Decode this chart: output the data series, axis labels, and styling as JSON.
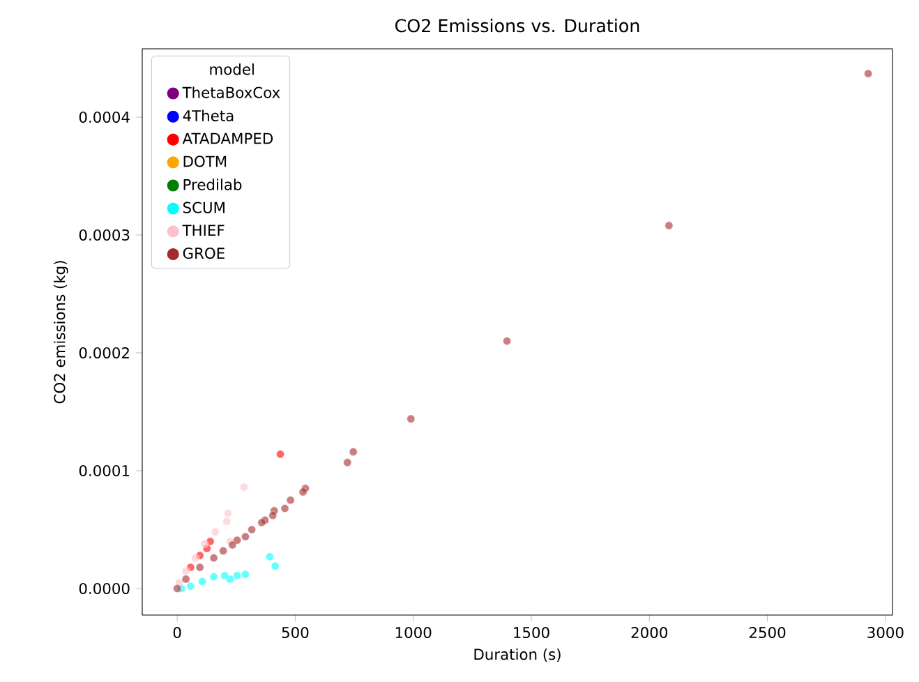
{
  "chart_data": {
    "type": "scatter",
    "title": "CO2 Emissions vs. Duration",
    "xlabel": "Duration (s)",
    "ylabel": "CO2 emissions (kg)",
    "legend_title": "model",
    "legend": "top left",
    "xlim": [
      -148,
      3030
    ],
    "ylim": [
      -2.25e-05,
      0.000458
    ],
    "xticks": [
      0,
      500,
      1000,
      1500,
      2000,
      2500,
      3000
    ],
    "yticks": [
      {
        "value": 0,
        "label": "0.0000"
      },
      {
        "value": 0.0001,
        "label": "0.0001"
      },
      {
        "value": 0.0002,
        "label": "0.0002"
      },
      {
        "value": 0.0003,
        "label": "0.0003"
      },
      {
        "value": 0.0004,
        "label": "0.0004"
      }
    ],
    "series": [
      {
        "name": "ThetaBoxCox",
        "color": "#800080"
      },
      {
        "name": "4Theta",
        "color": "#0000ff"
      },
      {
        "name": "ATADAMPED",
        "color": "#ff0000",
        "x": [
          437,
          140,
          126,
          96,
          57
        ],
        "values": [
          0.000114,
          4e-05,
          3.4e-05,
          2.8e-05,
          1.8e-05
        ]
      },
      {
        "name": "DOTM",
        "color": "#ffa500"
      },
      {
        "name": "Predilab",
        "color": "#008000"
      },
      {
        "name": "SCUM",
        "color": "#00ffff",
        "x": [
          392,
          415,
          289,
          254,
          224,
          201,
          155,
          106,
          57,
          18
        ],
        "values": [
          2.7e-05,
          1.9e-05,
          1.2e-05,
          1.1e-05,
          8e-06,
          1.1e-05,
          1e-05,
          6e-06,
          2e-06,
          0
        ]
      },
      {
        "name": "THIEF",
        "color": "#ffc0cb",
        "x": [
          283,
          215,
          210,
          161,
          224,
          116,
          77,
          37,
          9
        ],
        "values": [
          8.6e-05,
          6.4e-05,
          5.7e-05,
          4.8e-05,
          4e-05,
          3.8e-05,
          2.6e-05,
          1.5e-05,
          5e-06
        ]
      },
      {
        "name": "GROE",
        "color": "#a52a2a",
        "x": [
          2927,
          2083,
          1397,
          990,
          746,
          721,
          543,
          533,
          480,
          456,
          411,
          405,
          372,
          358,
          316,
          289,
          254,
          234,
          195,
          155,
          96,
          37,
          0
        ],
        "values": [
          0.000437,
          0.000308,
          0.00021,
          0.000144,
          0.000116,
          0.000107,
          8.5e-05,
          8.2e-05,
          7.5e-05,
          6.8e-05,
          6.6e-05,
          6.2e-05,
          5.8e-05,
          5.6e-05,
          5e-05,
          4.4e-05,
          4.1e-05,
          3.7e-05,
          3.2e-05,
          2.6e-05,
          1.8e-05,
          8e-06,
          0
        ]
      }
    ]
  }
}
